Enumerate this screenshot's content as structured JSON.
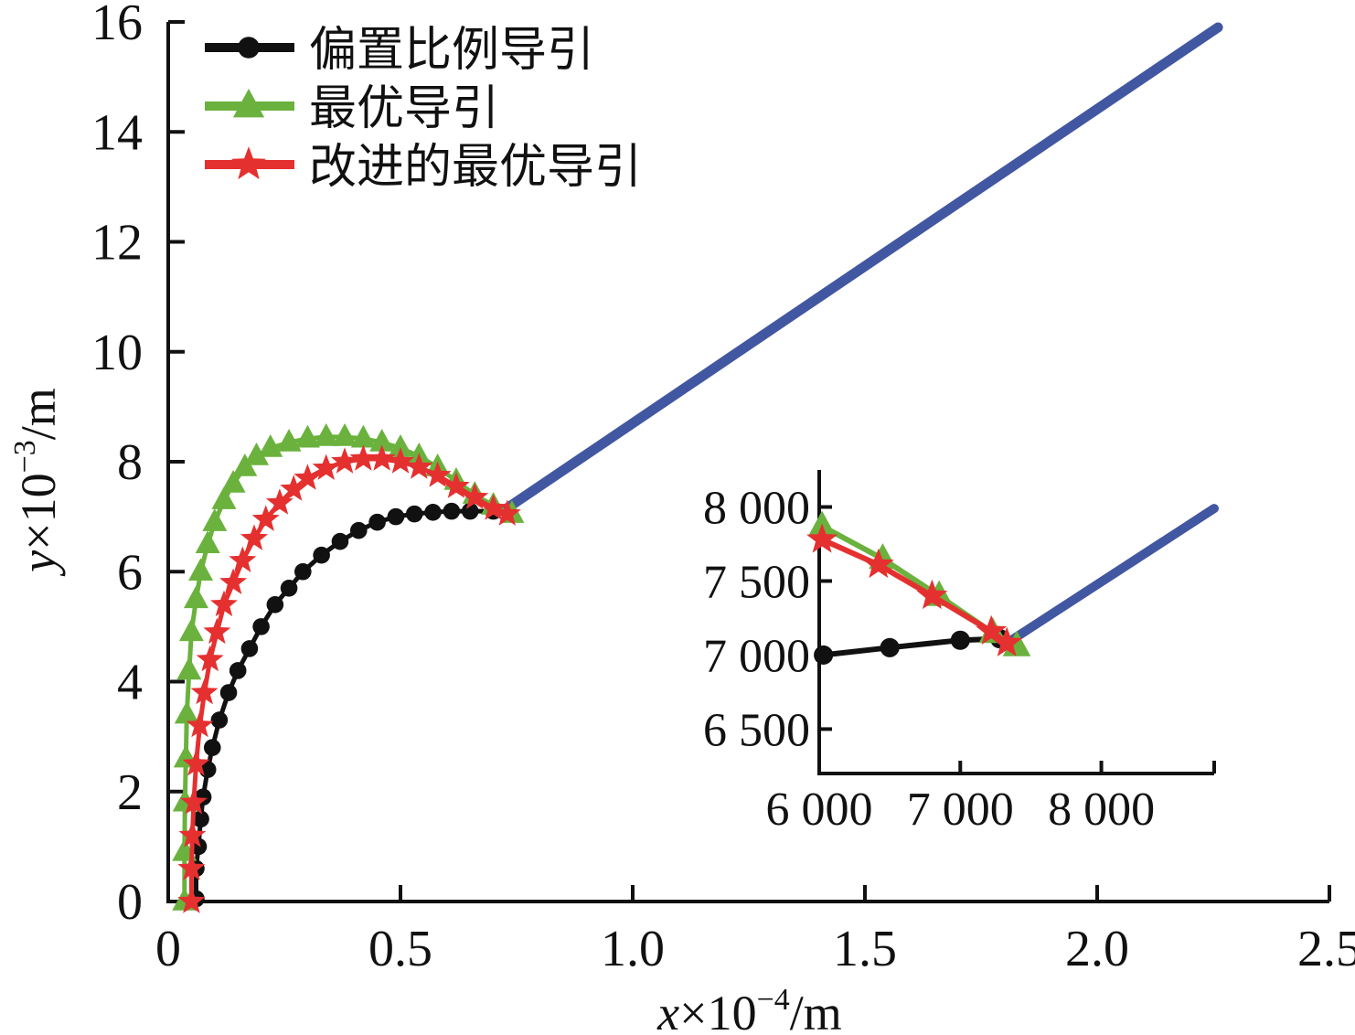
{
  "chart_data": [
    {
      "type": "line",
      "xlabel_var": "x",
      "xlabel_unit": "×10",
      "xlabel_exp": "−4",
      "xlabel_suffix": "/m",
      "ylabel_var": "y",
      "ylabel_unit": "×10",
      "ylabel_exp": "−3",
      "ylabel_suffix": "/m",
      "xlim": [
        0,
        2.5
      ],
      "ylim": [
        0,
        16
      ],
      "xticks": [
        "0",
        "0.5",
        "1.0",
        "1.5",
        "2.0",
        "2.5"
      ],
      "xtick_values": [
        0,
        0.5,
        1.0,
        1.5,
        2.0,
        2.5
      ],
      "yticks": [
        "0",
        "2",
        "4",
        "6",
        "8",
        "10",
        "12",
        "14",
        "16"
      ],
      "ytick_values": [
        0,
        2,
        4,
        6,
        8,
        10,
        12,
        14,
        16
      ],
      "grid": false,
      "legend_position": "top-left",
      "series": [
        {
          "name": "偏置比例导引",
          "color": "#111111",
          "marker": "circle",
          "x": [
            0.06,
            0.06,
            0.065,
            0.07,
            0.075,
            0.085,
            0.095,
            0.11,
            0.13,
            0.15,
            0.175,
            0.2,
            0.23,
            0.26,
            0.29,
            0.33,
            0.37,
            0.41,
            0.45,
            0.49,
            0.53,
            0.57,
            0.61,
            0.65,
            0.7
          ],
          "y": [
            0.05,
            0.6,
            1.0,
            1.5,
            1.9,
            2.4,
            2.8,
            3.3,
            3.8,
            4.2,
            4.6,
            5.0,
            5.4,
            5.7,
            6.0,
            6.3,
            6.55,
            6.75,
            6.9,
            7.0,
            7.05,
            7.08,
            7.1,
            7.1,
            7.1
          ]
        },
        {
          "name": "最优导引",
          "color": "#6ab23d",
          "marker": "triangle",
          "x": [
            0.035,
            0.035,
            0.036,
            0.038,
            0.04,
            0.045,
            0.05,
            0.06,
            0.07,
            0.085,
            0.1,
            0.12,
            0.14,
            0.165,
            0.19,
            0.22,
            0.26,
            0.3,
            0.34,
            0.38,
            0.42,
            0.46,
            0.5,
            0.54,
            0.58,
            0.62,
            0.66,
            0.7,
            0.74
          ],
          "y": [
            0.0,
            0.9,
            1.8,
            2.6,
            3.4,
            4.2,
            4.9,
            5.5,
            6.0,
            6.5,
            6.9,
            7.3,
            7.6,
            7.9,
            8.1,
            8.25,
            8.35,
            8.42,
            8.45,
            8.45,
            8.42,
            8.35,
            8.25,
            8.1,
            7.9,
            7.65,
            7.4,
            7.2,
            7.05
          ]
        },
        {
          "name": "改进的最优导引",
          "color": "#e53030",
          "marker": "star",
          "x": [
            0.05,
            0.05,
            0.052,
            0.055,
            0.06,
            0.068,
            0.078,
            0.09,
            0.105,
            0.12,
            0.14,
            0.16,
            0.185,
            0.21,
            0.24,
            0.27,
            0.3,
            0.34,
            0.38,
            0.42,
            0.46,
            0.5,
            0.54,
            0.58,
            0.62,
            0.66,
            0.7,
            0.73
          ],
          "y": [
            0.0,
            0.6,
            1.2,
            1.8,
            2.5,
            3.2,
            3.8,
            4.4,
            4.9,
            5.4,
            5.8,
            6.2,
            6.6,
            6.95,
            7.25,
            7.5,
            7.7,
            7.88,
            8.0,
            8.05,
            8.05,
            8.0,
            7.9,
            7.75,
            7.55,
            7.35,
            7.15,
            7.05
          ]
        },
        {
          "name": "",
          "color": "#4257a1",
          "marker": "none",
          "x": [
            0.72,
            2.26
          ],
          "y": [
            7.1,
            15.9
          ]
        }
      ]
    },
    {
      "type": "line",
      "title": "",
      "xlim": [
        6000,
        8800
      ],
      "ylim": [
        6200,
        8250
      ],
      "xticks": [
        "6 000",
        "7 000",
        "8 000"
      ],
      "xtick_values": [
        6000,
        7000,
        8000
      ],
      "yticks": [
        "6 500",
        "7 000",
        "7 500",
        "8 000"
      ],
      "ytick_values": [
        6500,
        7000,
        7500,
        8000
      ],
      "grid": false,
      "series": [
        {
          "name": "偏置比例导引",
          "color": "#111111",
          "marker": "circle",
          "x": [
            6030,
            6500,
            7000,
            7280
          ],
          "y": [
            7000,
            7050,
            7100,
            7110
          ]
        },
        {
          "name": "最优导引",
          "color": "#6ab23d",
          "marker": "triangle",
          "x": [
            6020,
            6450,
            6850,
            7230,
            7400
          ],
          "y": [
            7870,
            7650,
            7400,
            7150,
            7060
          ]
        },
        {
          "name": "改进的最优导引",
          "color": "#e53030",
          "marker": "star",
          "x": [
            6020,
            6420,
            6800,
            7220,
            7330
          ],
          "y": [
            7780,
            7610,
            7400,
            7160,
            7080
          ]
        },
        {
          "name": "",
          "color": "#4257a1",
          "marker": "none",
          "x": [
            7330,
            8800
          ],
          "y": [
            7080,
            7990
          ]
        }
      ]
    }
  ]
}
